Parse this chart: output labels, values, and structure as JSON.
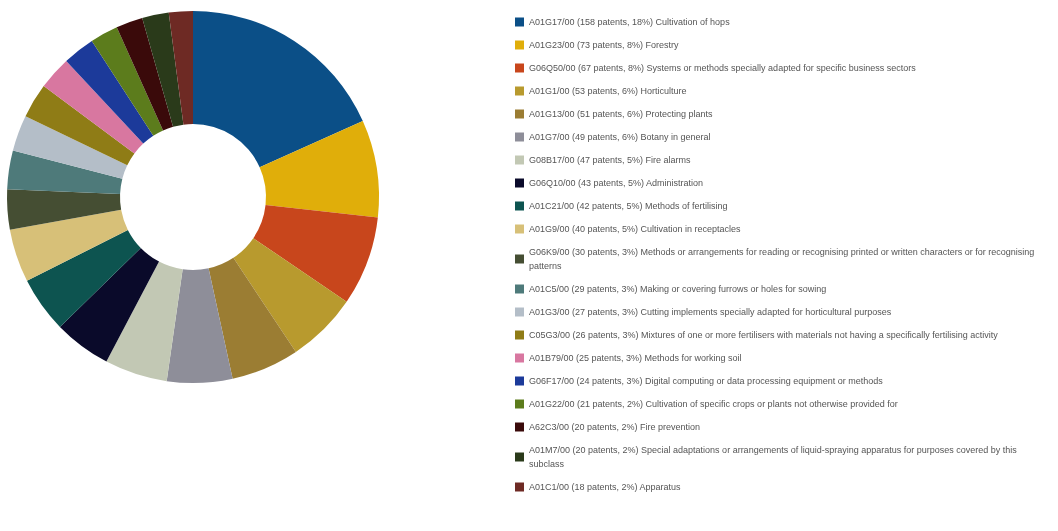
{
  "chart_data": {
    "type": "donut",
    "categories": [
      "A01G17/00 (158 patents, 18%) Cultivation of hops",
      "A01G23/00 (73 patents, 8%) Forestry",
      "G06Q50/00 (67 patents, 8%) Systems or methods specially adapted for specific business sectors",
      "A01G1/00 (53 patents, 6%) Horticulture",
      "A01G13/00 (51 patents, 6%) Protecting plants",
      "A01G7/00 (49 patents, 6%) Botany in general",
      "G08B17/00 (47 patents, 5%) Fire alarms",
      "G06Q10/00 (43 patents, 5%) Administration",
      "A01C21/00 (42 patents, 5%) Methods of fertilising",
      "A01G9/00 (40 patents, 5%) Cultivation in receptacles",
      "G06K9/00 (30 patents, 3%) Methods or arrangements for reading or recognising printed or written characters or for recognising patterns",
      "A01C5/00 (29 patents, 3%) Making or covering furrows or holes for sowing",
      "A01G3/00 (27 patents, 3%) Cutting implements specially adapted for horticultural purposes",
      "C05G3/00 (26 patents, 3%) Mixtures of one or more fertilisers with materials not having a specifically fertilising activity",
      "A01B79/00 (25 patents, 3%) Methods for working soil",
      "G06F17/00 (24 patents, 3%) Digital computing or data processing equipment or methods",
      "A01G22/00 (21 patents, 2%) Cultivation of specific crops or plants not otherwise provided for",
      "A62C3/00 (20 patents, 2%) Fire prevention",
      "A01M7/00 (20 patents, 2%) Special adaptations or arrangements of liquid-spraying apparatus for purposes covered by this subclass",
      "A01C1/00 (18 patents, 2%) Apparatus"
    ],
    "values": [
      158,
      73,
      67,
      53,
      51,
      49,
      47,
      43,
      42,
      40,
      30,
      29,
      27,
      26,
      25,
      24,
      21,
      20,
      20,
      18
    ],
    "colors": [
      "#0b4f87",
      "#e0ae0a",
      "#c8461c",
      "#b89a2e",
      "#9b7d33",
      "#8e8e99",
      "#c2c8b4",
      "#0a0a2a",
      "#0d5450",
      "#d7c078",
      "#454e33",
      "#4e7a7a",
      "#b4bec8",
      "#8f7c16",
      "#d877a0",
      "#1c3a9a",
      "#5c7c1c",
      "#3a0a0a",
      "#2a3a1a",
      "#6e2a24"
    ],
    "legend": "right"
  }
}
